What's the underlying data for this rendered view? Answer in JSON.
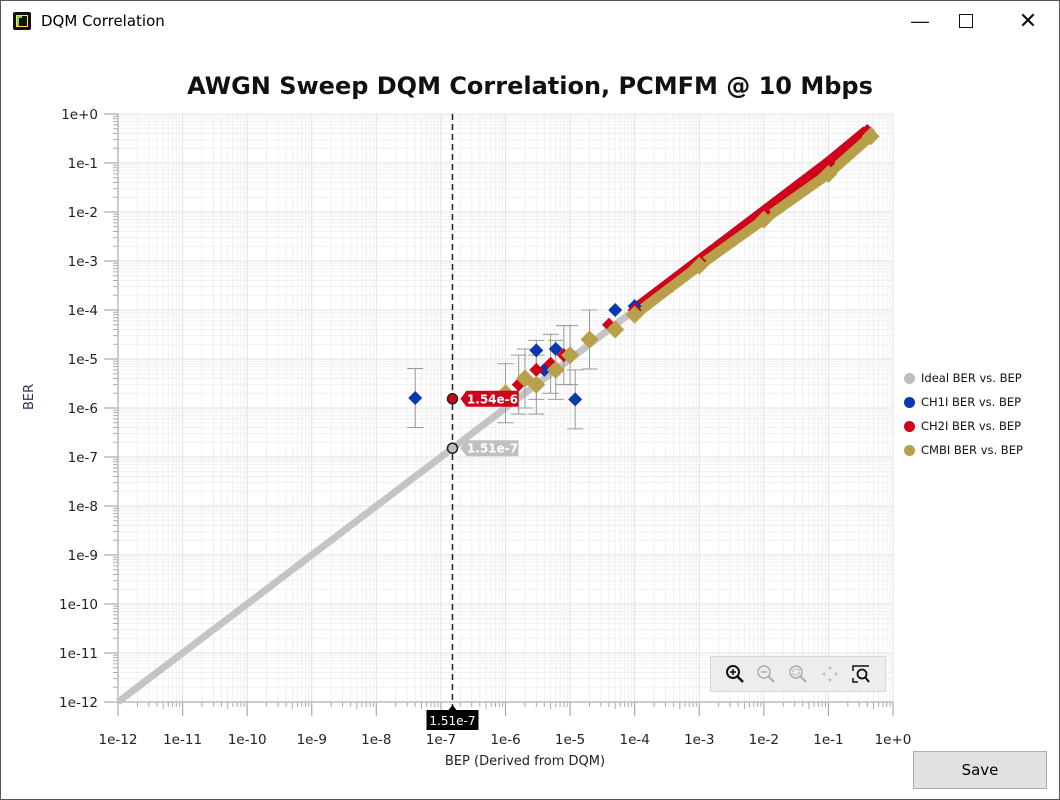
{
  "window": {
    "title": "DQM Correlation",
    "icon": "app-logo-icon",
    "controls": {
      "minimize": "minimize-icon",
      "maximize": "maximize-icon",
      "close": "close-icon"
    }
  },
  "save_label": "Save",
  "zoom_toolbar": [
    {
      "name": "zoom-in-icon",
      "enabled": true
    },
    {
      "name": "zoom-out-icon",
      "enabled": false
    },
    {
      "name": "zoom-reset-icon",
      "enabled": false
    },
    {
      "name": "pan-icon",
      "enabled": false
    },
    {
      "name": "zoom-to-fit-icon",
      "enabled": true
    }
  ],
  "chart_data": {
    "type": "scatter",
    "title": "AWGN Sweep DQM Correlation, PCMFM @ 10 Mbps",
    "xlabel": "BEP (Derived from DQM)",
    "ylabel": "BER",
    "xscale": "log",
    "yscale": "log",
    "xlim": [
      1e-12,
      1
    ],
    "ylim": [
      1e-12,
      1
    ],
    "xticks": [
      "1e-12",
      "1e-11",
      "1e-10",
      "1e-9",
      "1e-8",
      "1e-7",
      "1e-6",
      "1e-5",
      "1e-4",
      "1e-3",
      "1e-2",
      "1e-1",
      "1e+0"
    ],
    "yticks": [
      "1e+0",
      "1e-1",
      "1e-2",
      "1e-3",
      "1e-4",
      "1e-5",
      "1e-6",
      "1e-7",
      "1e-8",
      "1e-9",
      "1e-10",
      "1e-11",
      "1e-12"
    ],
    "grid": true,
    "legend_position": "right",
    "series": [
      {
        "name": "Ideal BER vs. BEP",
        "color": "#bdbdbd",
        "marker": "circle",
        "description": "y = x line from 1e-12 to ~0.5"
      },
      {
        "name": "CH1I BER vs. BEP",
        "color": "#0a36b0",
        "marker": "diamond",
        "points": [
          [
            4e-08,
            1.6e-06
          ],
          [
            1.2e-05,
            1.5e-06
          ],
          [
            3e-06,
            1.5e-05
          ],
          [
            6e-06,
            1.6e-05
          ],
          [
            5e-05,
            0.0001
          ],
          [
            0.0001,
            0.00012
          ],
          [
            4e-06,
            6e-06
          ]
        ]
      },
      {
        "name": "CH2I BER vs. BEP",
        "color": "#d0021b",
        "marker": "diamond",
        "points": [
          [
            1.6e-06,
            3e-06
          ],
          [
            3e-06,
            6e-06
          ],
          [
            5e-06,
            8e-06
          ],
          [
            8e-06,
            1.2e-05
          ],
          [
            2e-05,
            2.5e-05
          ],
          [
            4e-05,
            5e-05
          ],
          [
            0.0001,
            0.0001
          ],
          [
            0.001,
            0.001
          ],
          [
            0.01,
            0.01
          ],
          [
            0.1,
            0.1
          ],
          [
            0.4,
            0.45
          ]
        ]
      },
      {
        "name": "CMBI BER vs. BEP",
        "color": "#b8a04a",
        "marker": "diamond",
        "points": [
          [
            1e-06,
            2e-06
          ],
          [
            2e-06,
            4e-06
          ],
          [
            3e-06,
            3e-06
          ],
          [
            6e-06,
            6e-06
          ],
          [
            1e-05,
            1.2e-05
          ],
          [
            2e-05,
            2.5e-05
          ],
          [
            5e-05,
            4e-05
          ],
          [
            0.0001,
            8e-05
          ],
          [
            0.001,
            0.0008
          ],
          [
            0.01,
            0.007
          ],
          [
            0.1,
            0.06
          ],
          [
            0.45,
            0.35
          ]
        ]
      }
    ],
    "cursor": {
      "x_value": "1.51e-7",
      "labels": [
        {
          "series": "CH2I BER vs. BEP",
          "value": "1.54e-6"
        },
        {
          "series": "Ideal BER vs. BEP",
          "value": "1.51e-7"
        }
      ]
    }
  }
}
